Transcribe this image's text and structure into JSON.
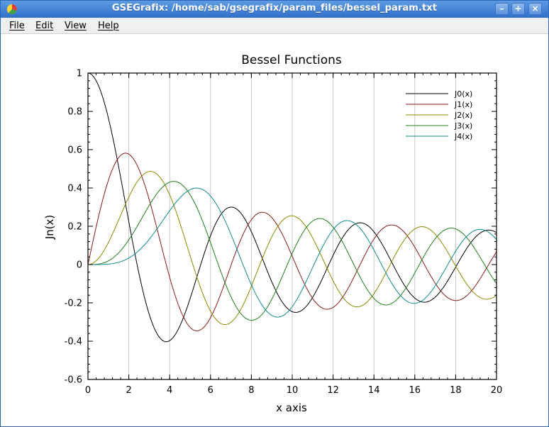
{
  "window": {
    "title": "GSEGrafix: /home/sab/gsegrafix/param_files/bessel_param.txt",
    "buttons": {
      "minimize": "–",
      "maximize": "+",
      "close": "×"
    }
  },
  "menu": {
    "file": "File",
    "edit": "Edit",
    "view": "View",
    "help": "Help"
  },
  "colors": {
    "titlebar": "#3a7bd5",
    "J0": "#000000",
    "J1": "#8b1a1a",
    "J2": "#8b8b00",
    "J3": "#1f7f1f",
    "J4": "#108b8b"
  },
  "chart_data": {
    "type": "line",
    "title": "Bessel Functions",
    "xlabel": "x axis",
    "ylabel": "Jn(x)",
    "xlim": [
      0,
      20
    ],
    "ylim": [
      -0.6,
      1
    ],
    "xticks": [
      "0",
      "2",
      "4",
      "6",
      "8",
      "10",
      "12",
      "14",
      "16",
      "18",
      "20"
    ],
    "yticks": [
      "1",
      "0.8",
      "0.6",
      "0.4",
      "0.2",
      "0",
      "-0.2",
      "-0.4",
      "-0.6"
    ],
    "grid": "vertical",
    "legend_position": "top-right",
    "legend": [
      "J0(x)",
      "J1(x)",
      "J2(x)",
      "J3(x)",
      "J4(x)"
    ],
    "series": [
      {
        "name": "J0(x)",
        "function": "J0",
        "order": 0,
        "color": "#000000"
      },
      {
        "name": "J1(x)",
        "function": "J1",
        "order": 1,
        "color": "#8b1a1a"
      },
      {
        "name": "J2(x)",
        "function": "J2",
        "order": 2,
        "color": "#8b8b00"
      },
      {
        "name": "J3(x)",
        "function": "J3",
        "order": 3,
        "color": "#1f7f1f"
      },
      {
        "name": "J4(x)",
        "function": "J4",
        "order": 4,
        "color": "#108b8b"
      }
    ]
  }
}
